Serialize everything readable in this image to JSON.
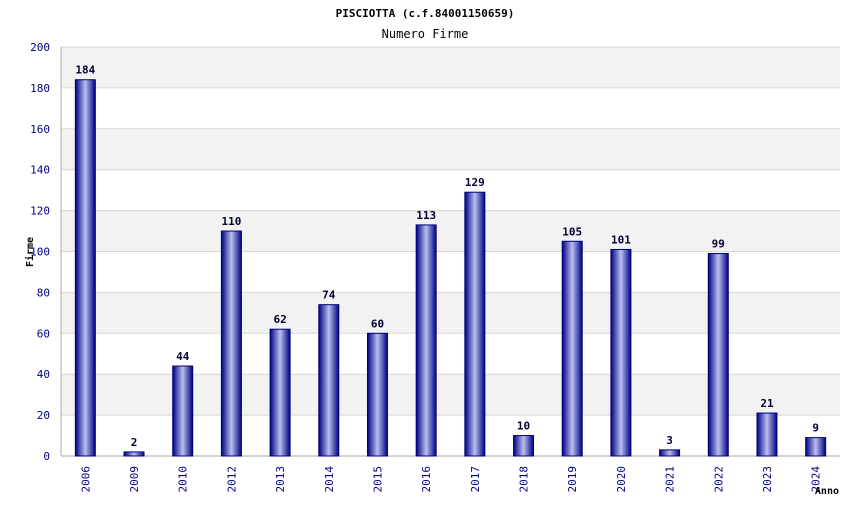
{
  "chart_data": {
    "type": "bar",
    "title": "PISCIOTTA (c.f.84001150659)",
    "subtitle": "Numero Firme",
    "xlabel": "Anno",
    "ylabel": "Firme",
    "ylim": [
      0,
      200
    ],
    "yticks": [
      0,
      20,
      40,
      60,
      80,
      100,
      120,
      140,
      160,
      180,
      200
    ],
    "grid": true,
    "categories": [
      "2006",
      "2009",
      "2010",
      "2012",
      "2013",
      "2014",
      "2015",
      "2016",
      "2017",
      "2018",
      "2019",
      "2020",
      "2021",
      "2022",
      "2023",
      "2024"
    ],
    "values": [
      184,
      2,
      44,
      110,
      62,
      74,
      60,
      113,
      129,
      10,
      105,
      101,
      3,
      99,
      21,
      9
    ],
    "colors": {
      "bar_dark": "#000080",
      "bar_light": "#b8c0f0",
      "band": "#f2f2f2",
      "grid": "#d8d8d8",
      "tick_text": "#00008b"
    }
  }
}
